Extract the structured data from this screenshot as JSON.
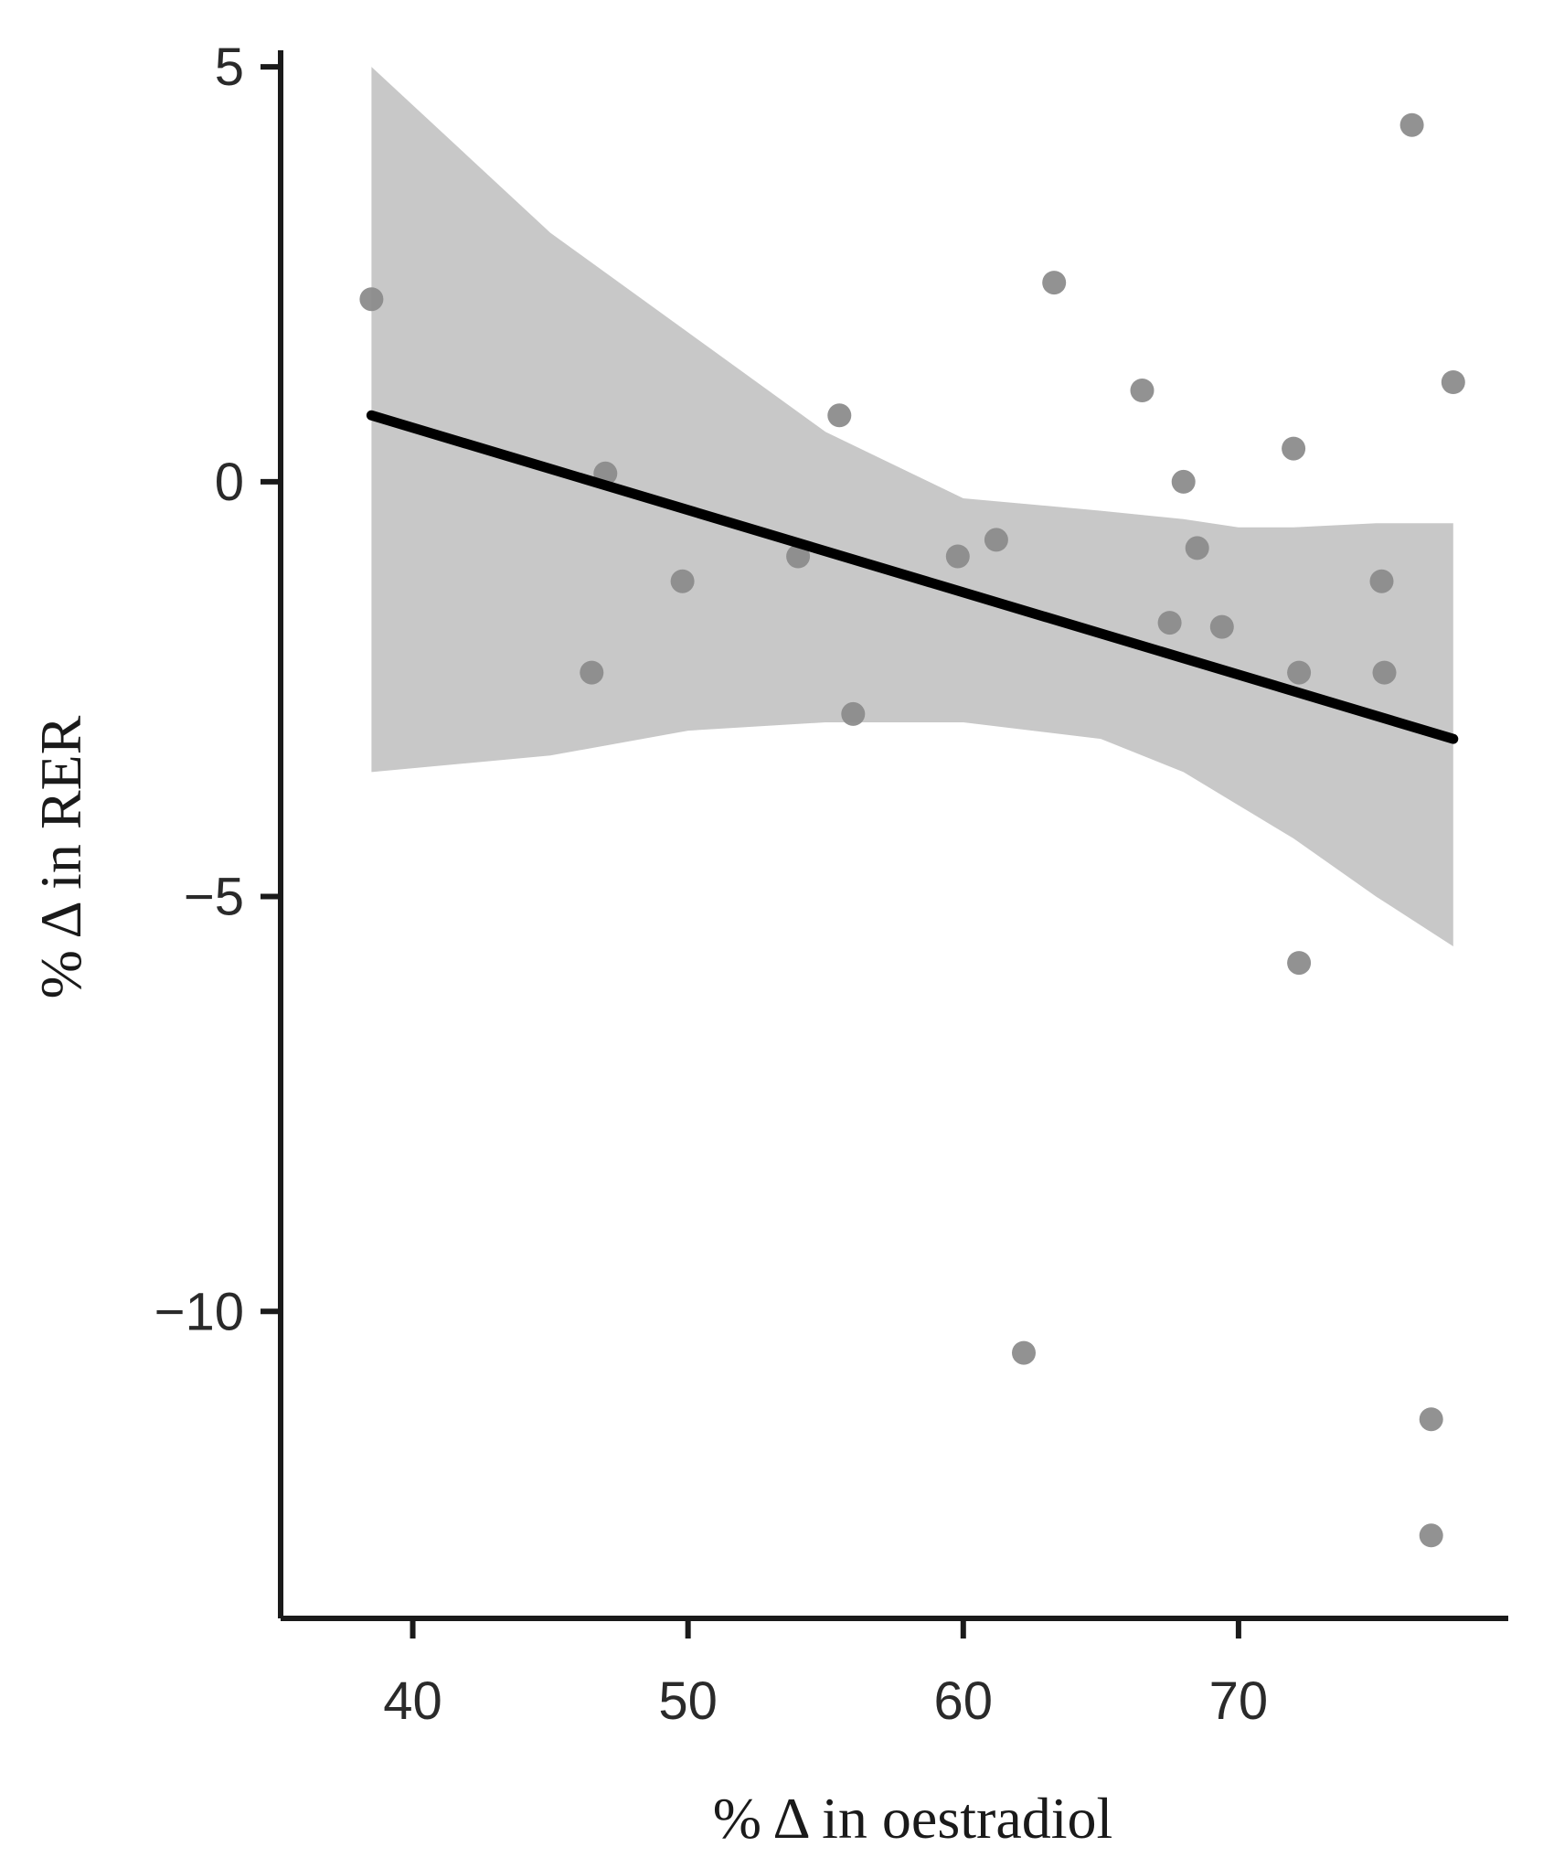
{
  "chart_data": {
    "type": "scatter",
    "title": "",
    "xlabel": "% Δ in oestradiol",
    "ylabel": "% Δ in RER",
    "xlim": [
      35.2,
      79.8
    ],
    "ylim": [
      -13.7,
      5.2
    ],
    "x_ticks": [
      40,
      50,
      60,
      70
    ],
    "x_tick_labels": [
      "40",
      "50",
      "60",
      "70"
    ],
    "y_ticks": [
      5,
      0,
      -5,
      -10
    ],
    "y_tick_labels": [
      "5",
      "0",
      "−5",
      "−10"
    ],
    "grid": false,
    "legend": "none",
    "points": [
      {
        "x": 38.5,
        "y": 2.2
      },
      {
        "x": 46.5,
        "y": -2.3
      },
      {
        "x": 47.0,
        "y": 0.1
      },
      {
        "x": 49.8,
        "y": -1.2
      },
      {
        "x": 54.0,
        "y": -0.9
      },
      {
        "x": 55.5,
        "y": 0.8
      },
      {
        "x": 56.0,
        "y": -2.8
      },
      {
        "x": 59.8,
        "y": -0.9
      },
      {
        "x": 61.2,
        "y": -0.7
      },
      {
        "x": 62.2,
        "y": -10.5
      },
      {
        "x": 63.3,
        "y": 2.4
      },
      {
        "x": 66.5,
        "y": 1.1
      },
      {
        "x": 67.5,
        "y": -1.7
      },
      {
        "x": 68.0,
        "y": 0.0
      },
      {
        "x": 68.5,
        "y": -0.8
      },
      {
        "x": 69.4,
        "y": -1.75
      },
      {
        "x": 72.0,
        "y": 0.4
      },
      {
        "x": 72.2,
        "y": -2.3
      },
      {
        "x": 72.2,
        "y": -5.8
      },
      {
        "x": 75.2,
        "y": -1.2
      },
      {
        "x": 75.3,
        "y": -2.3
      },
      {
        "x": 76.3,
        "y": 4.3
      },
      {
        "x": 77.0,
        "y": -11.3
      },
      {
        "x": 77.0,
        "y": -12.7
      },
      {
        "x": 77.8,
        "y": 1.2
      }
    ],
    "fit_line": {
      "x": [
        38.5,
        77.8
      ],
      "y": [
        0.8,
        -3.1
      ]
    },
    "confidence_band": {
      "x": [
        38.5,
        45,
        50,
        55,
        60,
        65,
        68,
        70,
        72,
        75,
        77.8
      ],
      "upper": [
        5.0,
        3.0,
        1.8,
        0.6,
        -0.2,
        -0.35,
        -0.45,
        -0.55,
        -0.55,
        -0.5,
        -0.5
      ],
      "lower": [
        -3.5,
        -3.3,
        -3.0,
        -2.9,
        -2.9,
        -3.1,
        -3.5,
        -3.9,
        -4.3,
        -5.0,
        -5.6
      ]
    },
    "colors": {
      "points": "#8c8c8c",
      "fit_line": "#000000",
      "band": "#c8c8c8",
      "axis": "#1a1a1a"
    }
  }
}
